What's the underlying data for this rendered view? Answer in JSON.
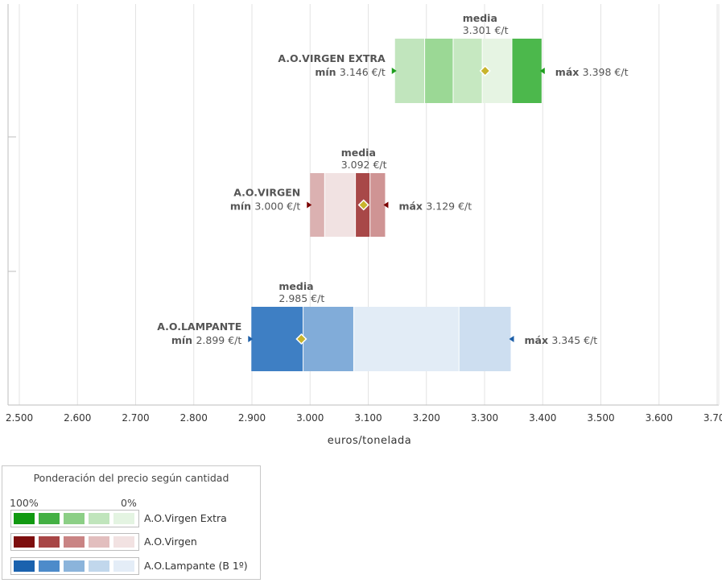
{
  "chart_data": {
    "type": "range-bar",
    "xlabel": "euros/tonelada",
    "xlim": [
      2500,
      3700
    ],
    "xticks": [
      2500,
      2600,
      2700,
      2800,
      2900,
      3000,
      3100,
      3200,
      3300,
      3400,
      3500,
      3600,
      3700
    ],
    "xtick_labels": [
      "2.500",
      "2.600",
      "2.700",
      "2.800",
      "2.900",
      "3.000",
      "3.100",
      "3.200",
      "3.300",
      "3.400",
      "3.500",
      "3.600",
      "3.700"
    ],
    "grid": true,
    "series": [
      {
        "name": "A.O.VIRGEN EXTRA",
        "min": 3146,
        "max": 3398,
        "media": 3301,
        "min_label": "mín",
        "min_value": "3.146 €/t",
        "max_label": "máx",
        "max_value": "3.398 €/t",
        "media_label": "media",
        "media_value": "3.301 €/t",
        "marker_color": "#1e9e1e",
        "bands": [
          {
            "from": 3146,
            "to": 3197,
            "color": "#c1e5bd"
          },
          {
            "from": 3197,
            "to": 3246,
            "color": "#9bd895"
          },
          {
            "from": 3246,
            "to": 3296,
            "color": "#c6e8c1"
          },
          {
            "from": 3296,
            "to": 3347,
            "color": "#e6f4e3"
          },
          {
            "from": 3347,
            "to": 3398,
            "color": "#4cb84c"
          }
        ]
      },
      {
        "name": "A.O.VIRGEN",
        "min": 3000,
        "max": 3129,
        "media": 3092,
        "min_label": "mín",
        "min_value": "3.000 €/t",
        "max_label": "máx",
        "max_value": "3.129 €/t",
        "media_label": "media",
        "media_value": "3.092 €/t",
        "marker_color": "#7a0000",
        "bands": [
          {
            "from": 3000,
            "to": 3025,
            "color": "#dbb1b1"
          },
          {
            "from": 3025,
            "to": 3078,
            "color": "#f1e2e2"
          },
          {
            "from": 3078,
            "to": 3103,
            "color": "#a84848"
          },
          {
            "from": 3103,
            "to": 3129,
            "color": "#cf9494"
          }
        ]
      },
      {
        "name": "A.O.LAMPANTE",
        "min": 2899,
        "max": 3345,
        "media": 2985,
        "min_label": "mín",
        "min_value": "2.899 €/t",
        "max_label": "máx",
        "max_value": "3.345 €/t",
        "media_label": "media",
        "media_value": "2.985 €/t",
        "marker_color": "#1d5fa8",
        "bands": [
          {
            "from": 2899,
            "to": 2988,
            "color": "#3e7fc4"
          },
          {
            "from": 2988,
            "to": 3075,
            "color": "#81acd9"
          },
          {
            "from": 3075,
            "to": 3256,
            "color": "#e2ecf6"
          },
          {
            "from": 3256,
            "to": 3345,
            "color": "#cddef0"
          }
        ]
      }
    ],
    "media_marker_color": "#c8b42c"
  },
  "legend": {
    "title": "Ponderación del precio según cantidad",
    "left_label": "100%",
    "right_label": "0%",
    "rows": [
      {
        "name": "A.O.Virgen Extra",
        "colors": [
          "#119911",
          "#44b044",
          "#8ccf86",
          "#c0e5bc",
          "#e4f4e2"
        ]
      },
      {
        "name": "A.O.Virgen",
        "colors": [
          "#7d0e0e",
          "#a84646",
          "#c98484",
          "#e2bebe",
          "#f2e2e2"
        ]
      },
      {
        "name": "A.O.Lampante (B 1º)",
        "colors": [
          "#1a62ae",
          "#4d8bca",
          "#8bb4db",
          "#c1d7ec",
          "#e4edf7"
        ]
      }
    ]
  }
}
